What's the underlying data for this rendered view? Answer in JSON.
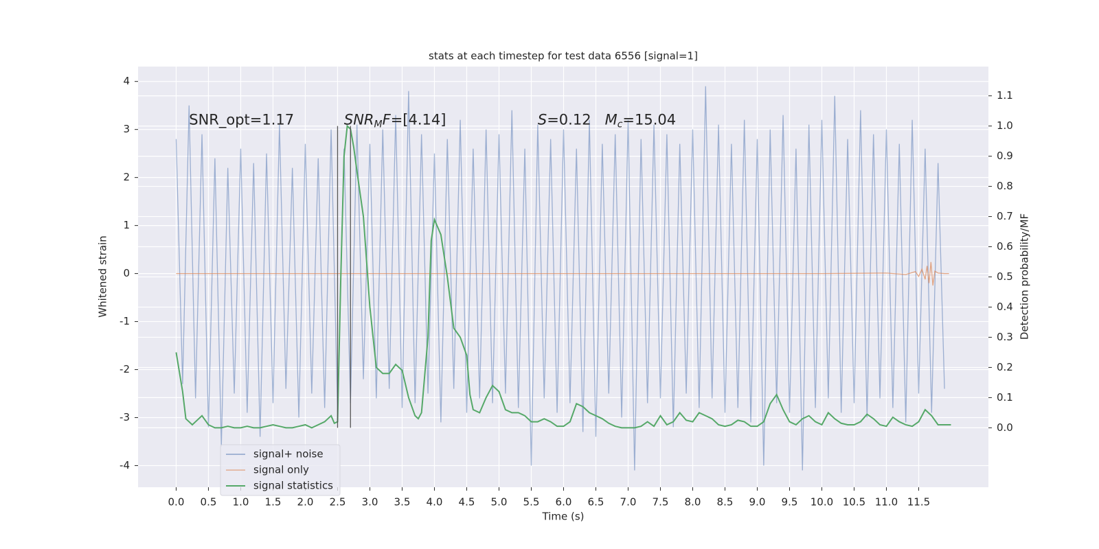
{
  "chart_data": {
    "type": "line",
    "title": "stats at each timestep for test data 6556 [signal=1]",
    "xlabel": "Time (s)",
    "ylabel": "Whitened strain",
    "y2label": "Detection probability/MF",
    "xlim": [
      -0.59,
      12.58
    ],
    "ylim": [
      -4.45,
      4.31
    ],
    "y2lim": [
      -0.197,
      1.197
    ],
    "xticks": [
      {
        "value": 0,
        "label": "0.0"
      },
      {
        "value": 0.5,
        "label": "0.5"
      },
      {
        "value": 1,
        "label": "1.0"
      },
      {
        "value": 1.5,
        "label": "1.5"
      },
      {
        "value": 2,
        "label": "2.0"
      },
      {
        "value": 2.5,
        "label": "2.5"
      },
      {
        "value": 3,
        "label": "3.0"
      },
      {
        "value": 3.5,
        "label": "3.5"
      },
      {
        "value": 4,
        "label": "4.0"
      },
      {
        "value": 4.5,
        "label": "4.5"
      },
      {
        "value": 5,
        "label": "5.0"
      },
      {
        "value": 5.5,
        "label": "5.5"
      },
      {
        "value": 6,
        "label": "6.0"
      },
      {
        "value": 6.5,
        "label": "6.5"
      },
      {
        "value": 7,
        "label": "7.0"
      },
      {
        "value": 7.5,
        "label": "7.5"
      },
      {
        "value": 8,
        "label": "8.0"
      },
      {
        "value": 8.5,
        "label": "8.5"
      },
      {
        "value": 9,
        "label": "9.0"
      },
      {
        "value": 9.5,
        "label": "9.5"
      },
      {
        "value": 10,
        "label": "10.0"
      },
      {
        "value": 10.5,
        "label": "10.5"
      },
      {
        "value": 11,
        "label": "11.0"
      },
      {
        "value": 11.5,
        "label": "11.5"
      }
    ],
    "yticks": [
      -4,
      -3,
      -2,
      -1,
      0,
      1,
      2,
      3,
      4
    ],
    "y2ticks": [
      {
        "value": 0,
        "label": "0.0"
      },
      {
        "value": 0.1,
        "label": "0.1"
      },
      {
        "value": 0.2,
        "label": "0.2"
      },
      {
        "value": 0.3,
        "label": "0.3"
      },
      {
        "value": 0.4,
        "label": "0.4"
      },
      {
        "value": 0.5,
        "label": "0.5"
      },
      {
        "value": 0.6,
        "label": "0.6"
      },
      {
        "value": 0.7,
        "label": "0.7"
      },
      {
        "value": 0.8,
        "label": "0.8"
      },
      {
        "value": 0.9,
        "label": "0.9"
      },
      {
        "value": 1.0,
        "label": "1.0"
      },
      {
        "value": 1.1,
        "label": "1.1"
      }
    ],
    "grid": true,
    "legend": "lower left",
    "series": [
      {
        "name": "signal+ noise",
        "color": "#4c72b0",
        "x": [
          0.0,
          0.1,
          0.2,
          0.3,
          0.4,
          0.5,
          0.6,
          0.7,
          0.8,
          0.9,
          1.0,
          1.1,
          1.2,
          1.3,
          1.4,
          1.5,
          1.6,
          1.7,
          1.8,
          1.9,
          2.0,
          2.1,
          2.2,
          2.3,
          2.4,
          2.5,
          2.6,
          2.7,
          2.8,
          2.9,
          3.0,
          3.1,
          3.2,
          3.3,
          3.4,
          3.5,
          3.6,
          3.7,
          3.8,
          3.9,
          4.0,
          4.1,
          4.2,
          4.3,
          4.4,
          4.5,
          4.6,
          4.7,
          4.8,
          4.9,
          5.0,
          5.1,
          5.2,
          5.3,
          5.4,
          5.5,
          5.6,
          5.7,
          5.8,
          5.9,
          6.0,
          6.1,
          6.2,
          6.3,
          6.4,
          6.5,
          6.6,
          6.7,
          6.8,
          6.9,
          7.0,
          7.1,
          7.2,
          7.3,
          7.4,
          7.5,
          7.6,
          7.7,
          7.8,
          7.9,
          8.0,
          8.1,
          8.2,
          8.3,
          8.4,
          8.5,
          8.6,
          8.7,
          8.8,
          8.9,
          9.0,
          9.1,
          9.2,
          9.3,
          9.4,
          9.5,
          9.6,
          9.7,
          9.8,
          9.9,
          10.0,
          10.1,
          10.2,
          10.3,
          10.4,
          10.5,
          10.6,
          10.7,
          10.8,
          10.9,
          11.0,
          11.1,
          11.2,
          11.3,
          11.4,
          11.5,
          11.6,
          11.7,
          11.8,
          11.9
        ],
        "values": [
          2.8,
          -2.3,
          3.5,
          -2.6,
          2.9,
          -3.2,
          2.4,
          -3.6,
          2.2,
          -2.5,
          2.6,
          -2.9,
          2.3,
          -3.4,
          2.5,
          -2.7,
          3.1,
          -2.4,
          2.2,
          -3.0,
          2.7,
          -2.5,
          2.4,
          -2.8,
          3.0,
          -2.9,
          2.6,
          -2.7,
          3.1,
          -2.2,
          2.7,
          -2.6,
          3.0,
          -2.4,
          3.3,
          -2.8,
          3.8,
          -2.7,
          2.9,
          -2.5,
          2.5,
          -3.1,
          2.8,
          -2.4,
          3.2,
          -2.9,
          2.6,
          -2.6,
          3.0,
          -2.7,
          2.9,
          -2.5,
          3.4,
          -2.8,
          2.6,
          -4.0,
          3.1,
          -2.6,
          2.8,
          -2.9,
          3.0,
          -2.7,
          2.6,
          -3.3,
          3.2,
          -3.4,
          2.7,
          -2.5,
          2.9,
          -3.0,
          3.2,
          -4.1,
          2.8,
          -2.7,
          3.1,
          -2.6,
          2.9,
          -3.2,
          2.7,
          -2.5,
          3.0,
          -2.8,
          3.9,
          -2.6,
          3.1,
          -2.9,
          2.7,
          -2.8,
          3.2,
          -3.1,
          2.8,
          -4.0,
          3.0,
          -2.7,
          3.3,
          -2.9,
          2.6,
          -4.1,
          3.1,
          -2.8,
          3.2,
          -2.6,
          3.7,
          -2.9,
          2.8,
          -2.7,
          3.4,
          -3.0,
          2.9,
          -2.6,
          3.0,
          -2.8,
          2.7,
          -3.1,
          3.2,
          -2.5,
          2.6,
          -2.9,
          2.3,
          -2.4
        ]
      },
      {
        "name": "signal only",
        "color": "#dd8452",
        "x": [
          0,
          2,
          4,
          6,
          8,
          10,
          11,
          11.3,
          11.45,
          11.5,
          11.55,
          11.6,
          11.63,
          11.66,
          11.69,
          11.72,
          11.75,
          11.8,
          11.9,
          11.97
        ],
        "values": [
          0,
          0,
          0,
          0,
          0,
          0,
          0.01,
          -0.02,
          0.04,
          -0.06,
          0.09,
          -0.12,
          0.16,
          -0.2,
          0.24,
          -0.25,
          0.05,
          0.01,
          0,
          0
        ]
      },
      {
        "name": "signal statistics",
        "color": "#55a868",
        "axis": "y2",
        "x": [
          0.0,
          0.1,
          0.15,
          0.25,
          0.3,
          0.4,
          0.5,
          0.6,
          0.7,
          0.8,
          0.9,
          1.0,
          1.1,
          1.2,
          1.3,
          1.4,
          1.5,
          1.6,
          1.7,
          1.8,
          1.9,
          2.0,
          2.1,
          2.2,
          2.3,
          2.4,
          2.45,
          2.5,
          2.55,
          2.6,
          2.65,
          2.7,
          2.75,
          2.8,
          2.9,
          3.0,
          3.1,
          3.2,
          3.3,
          3.4,
          3.5,
          3.6,
          3.7,
          3.75,
          3.8,
          3.9,
          3.95,
          4.0,
          4.1,
          4.2,
          4.3,
          4.4,
          4.45,
          4.5,
          4.55,
          4.6,
          4.7,
          4.8,
          4.9,
          5.0,
          5.1,
          5.2,
          5.3,
          5.4,
          5.5,
          5.6,
          5.7,
          5.8,
          5.9,
          6.0,
          6.1,
          6.2,
          6.3,
          6.4,
          6.5,
          6.6,
          6.7,
          6.8,
          6.9,
          7.0,
          7.1,
          7.2,
          7.3,
          7.4,
          7.5,
          7.6,
          7.7,
          7.8,
          7.9,
          8.0,
          8.1,
          8.2,
          8.3,
          8.4,
          8.5,
          8.6,
          8.7,
          8.8,
          8.9,
          9.0,
          9.1,
          9.2,
          9.3,
          9.4,
          9.5,
          9.6,
          9.7,
          9.8,
          9.9,
          10.0,
          10.1,
          10.2,
          10.3,
          10.4,
          10.5,
          10.6,
          10.7,
          10.8,
          10.9,
          11.0,
          11.1,
          11.2,
          11.3,
          11.4,
          11.5,
          11.6,
          11.7,
          11.8,
          11.9,
          12.0
        ],
        "values": [
          0.25,
          0.12,
          0.03,
          0.01,
          0.02,
          0.04,
          0.01,
          0.0,
          0.0,
          0.005,
          0.0,
          0.0,
          0.005,
          0.0,
          0.0,
          0.005,
          0.01,
          0.005,
          0.0,
          0.0,
          0.005,
          0.01,
          0.0,
          0.01,
          0.02,
          0.04,
          0.015,
          0.02,
          0.5,
          0.9,
          1.0,
          0.99,
          0.93,
          0.85,
          0.7,
          0.4,
          0.2,
          0.18,
          0.18,
          0.21,
          0.19,
          0.1,
          0.04,
          0.03,
          0.05,
          0.3,
          0.62,
          0.69,
          0.64,
          0.5,
          0.33,
          0.3,
          0.27,
          0.24,
          0.11,
          0.06,
          0.05,
          0.1,
          0.14,
          0.12,
          0.06,
          0.05,
          0.05,
          0.04,
          0.02,
          0.02,
          0.03,
          0.02,
          0.005,
          0.005,
          0.02,
          0.08,
          0.07,
          0.05,
          0.04,
          0.03,
          0.015,
          0.005,
          0.0,
          0.0,
          0.0,
          0.005,
          0.02,
          0.005,
          0.04,
          0.01,
          0.02,
          0.05,
          0.025,
          0.02,
          0.05,
          0.04,
          0.03,
          0.01,
          0.005,
          0.01,
          0.025,
          0.02,
          0.005,
          0.005,
          0.02,
          0.08,
          0.11,
          0.06,
          0.02,
          0.01,
          0.03,
          0.04,
          0.02,
          0.01,
          0.05,
          0.03,
          0.015,
          0.01,
          0.01,
          0.02,
          0.045,
          0.03,
          0.01,
          0.005,
          0.035,
          0.02,
          0.01,
          0.005,
          0.02,
          0.06,
          0.04,
          0.01,
          0.01,
          0.01
        ]
      }
    ],
    "vlines": [
      {
        "x": 2.5,
        "y2": [
          0,
          1.0
        ],
        "color": "#555555"
      },
      {
        "x": 2.7,
        "y2": [
          0,
          1.0
        ],
        "color": "#555555"
      }
    ],
    "annotations": [
      {
        "x": 0.2,
        "y": 3.19,
        "parts": [
          {
            "text": "SNR_opt=1.17"
          }
        ]
      },
      {
        "x": 2.6,
        "y": 3.19,
        "parts": [
          {
            "text": "SNR",
            "italic": true
          },
          {
            "text": "M",
            "italic": true,
            "sub": true
          },
          {
            "text": "F",
            "italic": true
          },
          {
            "text": "=[4.14]"
          }
        ]
      },
      {
        "x": 5.6,
        "y": 3.19,
        "parts": [
          {
            "text": "S",
            "italic": true
          },
          {
            "text": "=0.12   "
          },
          {
            "text": "M",
            "italic": true
          },
          {
            "text": "c",
            "italic": true,
            "sub": true
          },
          {
            "text": "=15.04"
          }
        ]
      }
    ]
  }
}
